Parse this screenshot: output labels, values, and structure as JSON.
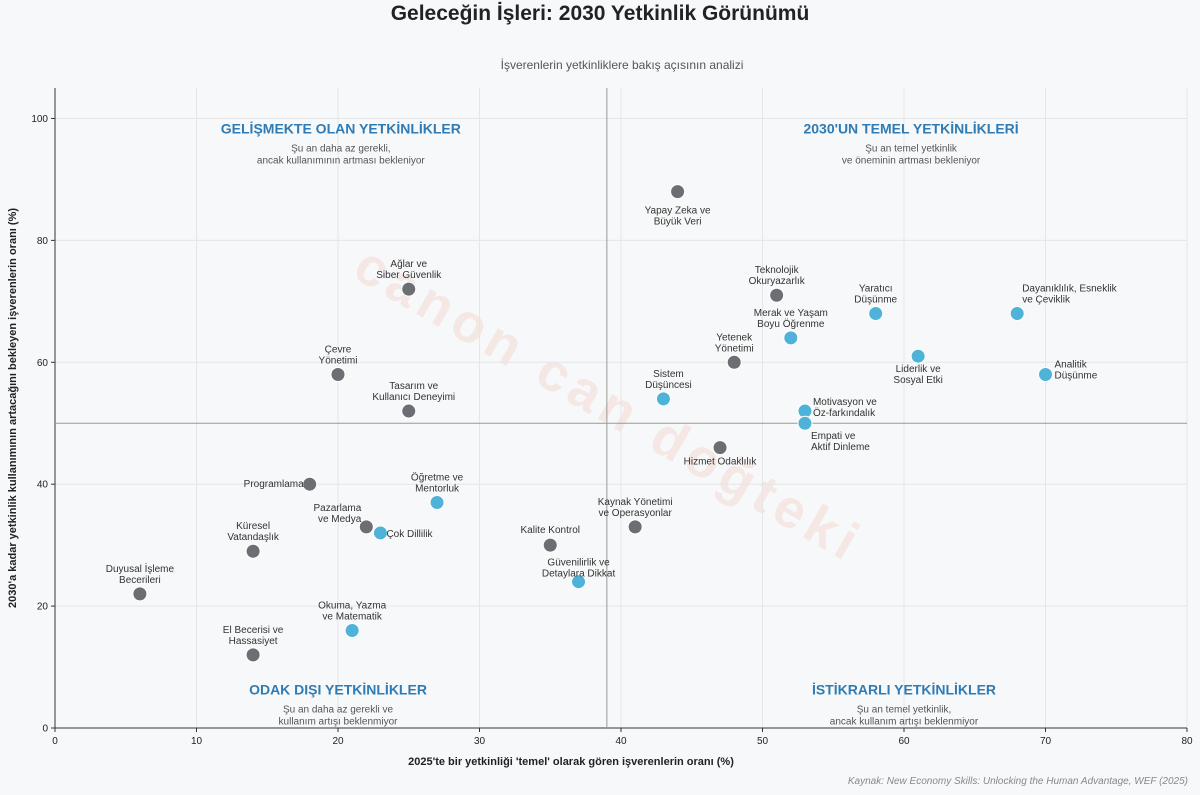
{
  "title": "Geleceğin İşleri: 2030 Yetkinlik Görünümü",
  "subtitle": "İşverenlerin yetkinliklere bakış açısının analizi",
  "source": "Kaynak: New Economy Skills: Unlocking the Human Advantage, WEF (2025)",
  "watermark": "canon can doğteki",
  "colors": {
    "gray": "#6b6e72",
    "blue": "#4fb3d9",
    "accent": "#2f7bb5"
  },
  "chart_data": {
    "type": "scatter",
    "title": "Geleceğin İşleri: 2030 Yetkinlik Görünümü",
    "xlabel": "2025'te bir yetkinliği 'temel' olarak gören işverenlerin oranı (%)",
    "ylabel": "2030'a kadar yetkinlik kullanımının artacağını bekleyen işverenlerin oranı (%)",
    "xlim": [
      0,
      80
    ],
    "ylim": [
      0,
      105
    ],
    "xticks": [
      0,
      10,
      20,
      30,
      40,
      50,
      60,
      70,
      80
    ],
    "yticks": [
      0,
      20,
      40,
      60,
      80,
      100
    ],
    "grid": true,
    "reference_lines": {
      "x": 39,
      "y": 50
    },
    "quadrants": [
      {
        "title": "GELİŞMEKTE OLAN YETKİNLİKLER",
        "desc": [
          "Şu an daha az gerekli,",
          "ancak kullanımının artması bekleniyor"
        ]
      },
      {
        "title": "2030'UN TEMEL YETKİNLİKLERİ",
        "desc": [
          "Şu an temel yetkinlik",
          "ve öneminin artması bekleniyor"
        ]
      },
      {
        "title": "ODAK DIŞI YETKİNLİKLER",
        "desc": [
          "Şu an daha az gerekli ve",
          "kullanım artışı beklenmiyor"
        ]
      },
      {
        "title": "İSTİKRARLI YETKİNLİKLER",
        "desc": [
          "Şu an temel yetkinlik,",
          "ancak kullanım artışı beklenmiyor"
        ]
      }
    ],
    "points": [
      {
        "label": [
          "Yapay Zeka ve",
          "Büyük Veri"
        ],
        "x": 44,
        "y": 88,
        "color": "gray"
      },
      {
        "label": [
          "Ağlar ve",
          "Siber Güvenlik"
        ],
        "x": 25,
        "y": 72,
        "color": "gray"
      },
      {
        "label": [
          "Teknolojik",
          "Okuryazarlık"
        ],
        "x": 51,
        "y": 71,
        "color": "gray"
      },
      {
        "label": [
          "Yaratıcı",
          "Düşünme"
        ],
        "x": 58,
        "y": 68,
        "color": "blue"
      },
      {
        "label": [
          "Dayanıklılık, Esneklik",
          "ve Çeviklik"
        ],
        "x": 68,
        "y": 68,
        "color": "blue"
      },
      {
        "label": [
          "Merak ve Yaşam",
          "Boyu Öğrenme"
        ],
        "x": 52,
        "y": 64,
        "color": "blue"
      },
      {
        "label": [
          "Liderlik ve",
          "Sosyal Etki"
        ],
        "x": 61,
        "y": 61,
        "color": "blue"
      },
      {
        "label": [
          "Yetenek",
          "Yönetimi"
        ],
        "x": 48,
        "y": 60,
        "color": "gray"
      },
      {
        "label": [
          "Çevre",
          "Yönetimi"
        ],
        "x": 20,
        "y": 58,
        "color": "gray"
      },
      {
        "label": [
          "Analitik",
          "Düşünme"
        ],
        "x": 70,
        "y": 58,
        "color": "blue"
      },
      {
        "label": [
          "Sistem",
          "Düşüncesi"
        ],
        "x": 43,
        "y": 54,
        "color": "blue"
      },
      {
        "label": [
          "Tasarım ve",
          "Kullanıcı Deneyimi"
        ],
        "x": 25,
        "y": 52,
        "color": "gray"
      },
      {
        "label": [
          "Motivasyon ve",
          "Öz-farkındalık"
        ],
        "x": 53,
        "y": 52,
        "color": "blue"
      },
      {
        "label": [
          "Empati ve",
          "Aktif Dinleme"
        ],
        "x": 53,
        "y": 50,
        "color": "blue"
      },
      {
        "label": [
          "Hizmet Odaklılık"
        ],
        "x": 47,
        "y": 46,
        "color": "gray"
      },
      {
        "label": [
          "Programlama"
        ],
        "x": 18,
        "y": 40,
        "color": "gray"
      },
      {
        "label": [
          "Öğretme ve",
          "Mentorluk"
        ],
        "x": 27,
        "y": 37,
        "color": "blue"
      },
      {
        "label": [
          "Kaynak Yönetimi",
          "ve Operasyonlar"
        ],
        "x": 41,
        "y": 33,
        "color": "gray"
      },
      {
        "label": [
          "Pazarlama",
          "ve Medya"
        ],
        "x": 22,
        "y": 33,
        "color": "gray"
      },
      {
        "label": [
          "Çok Dillilik"
        ],
        "x": 23,
        "y": 32,
        "color": "blue"
      },
      {
        "label": [
          "Kalite Kontrol"
        ],
        "x": 35,
        "y": 30,
        "color": "gray"
      },
      {
        "label": [
          "Küresel",
          "Vatandaşlık"
        ],
        "x": 14,
        "y": 29,
        "color": "gray"
      },
      {
        "label": [
          "Güvenilirlik ve",
          "Detaylara Dikkat"
        ],
        "x": 37,
        "y": 24,
        "color": "blue"
      },
      {
        "label": [
          "Duyusal İşleme",
          "Becerileri"
        ],
        "x": 6,
        "y": 22,
        "color": "gray"
      },
      {
        "label": [
          "Okuma, Yazma",
          "ve Matematik"
        ],
        "x": 21,
        "y": 16,
        "color": "blue"
      },
      {
        "label": [
          "El Becerisi ve",
          "Hassasiyet"
        ],
        "x": 14,
        "y": 12,
        "color": "gray"
      }
    ]
  }
}
